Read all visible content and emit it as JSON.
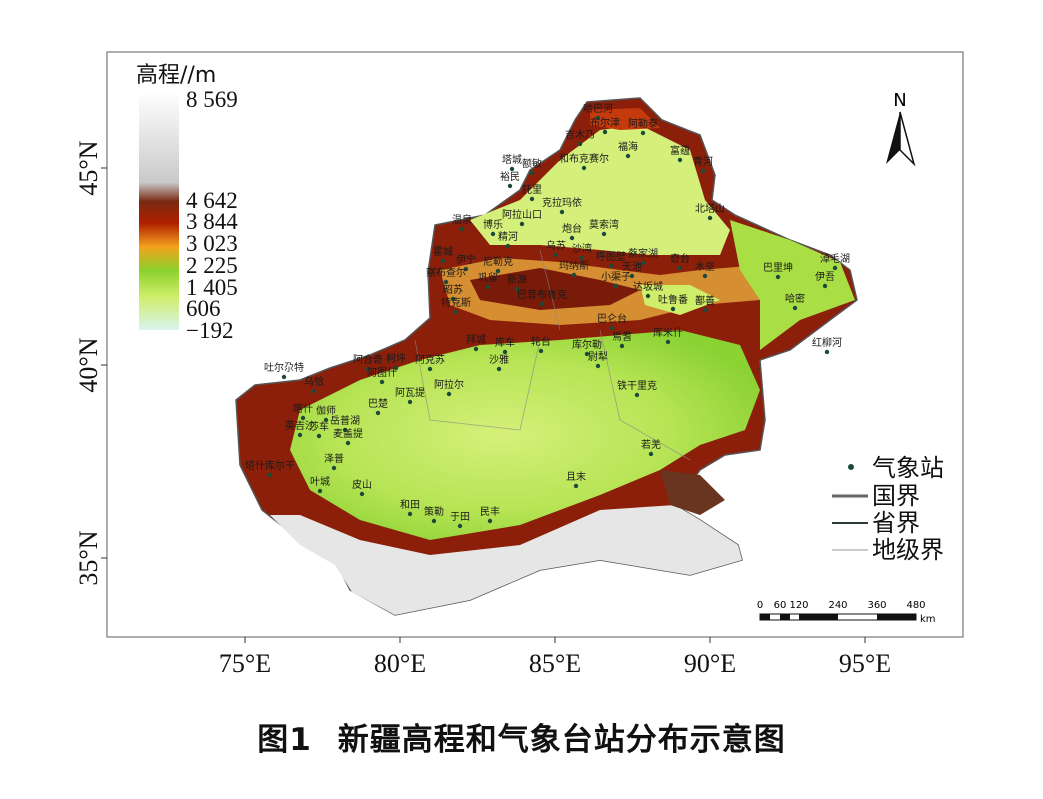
{
  "legend_elevation": {
    "title": "高程//m",
    "ticks": [
      "8 569",
      "4 642",
      "3 844",
      "3 023",
      "2 225",
      "1 405",
      "606",
      "−192"
    ]
  },
  "north_arrow": {
    "label": "N",
    "icon": "north-arrow-icon"
  },
  "longitude_ticks": [
    "75°E",
    "80°E",
    "85°E",
    "90°E",
    "95°E"
  ],
  "latitude_ticks": [
    "45°N",
    "40°N",
    "35°N"
  ],
  "legend_symbols": [
    {
      "label": "气象站",
      "icon": "station-dot-icon"
    },
    {
      "label": "国界",
      "icon": "country-border-line-icon"
    },
    {
      "label": "省界",
      "icon": "province-border-line-icon"
    },
    {
      "label": "地级界",
      "icon": "prefecture-border-line-icon"
    }
  ],
  "scale_bar": {
    "labels": [
      "0",
      "60",
      "120",
      "240",
      "360",
      "480"
    ],
    "unit": "km"
  },
  "stations": [
    "哈巴河",
    "布尔津",
    "阿勒泰",
    "吉木乃",
    "福海",
    "富蕴",
    "青河",
    "塔城",
    "额敏",
    "和布克赛尔",
    "裕民",
    "托里",
    "克拉玛依",
    "阿拉山口",
    "温泉",
    "博乐",
    "精河",
    "炮台",
    "莫索湾",
    "乌苏",
    "沙湾",
    "呼图壁",
    "蔡家湖",
    "奇台",
    "木垒",
    "北塔山",
    "巴里坤",
    "淖毛湖",
    "伊吾",
    "哈密",
    "红柳河",
    "霍城",
    "伊宁",
    "察布查尔",
    "尼勒克",
    "新源",
    "巩留",
    "昭苏",
    "特克斯",
    "玛纳斯",
    "小渠子",
    "天池",
    "达坂城",
    "吐鲁番",
    "鄯善",
    "库尔勒",
    "焉耆",
    "库米什",
    "巴仑台",
    "巴音布鲁克",
    "轮台",
    "库车",
    "拜城",
    "沙雅",
    "尉犁",
    "铁干里克",
    "若羌",
    "且末",
    "阿克苏",
    "阿拉尔",
    "柯坪",
    "阿合奇",
    "乌恰",
    "阿图什",
    "吐尔尕特",
    "阿瓦提",
    "巴楚",
    "喀什",
    "伽师",
    "岳普湖",
    "英吉沙",
    "麦盖提",
    "莎车",
    "泽普",
    "塔什库尔干",
    "叶城",
    "皮山",
    "和田",
    "策勒",
    "于田",
    "民丰"
  ],
  "caption": {
    "number": "图1",
    "title": "新疆高程和气象台站分布示意图"
  },
  "colors": {
    "lowland": "#d8f07a",
    "plain": "#8fd33a",
    "foothill": "#e1b94a",
    "mountain": "#8b1f0a",
    "high": "#4a2a1a",
    "snow": "#eaeaea",
    "frame": "#555555"
  }
}
